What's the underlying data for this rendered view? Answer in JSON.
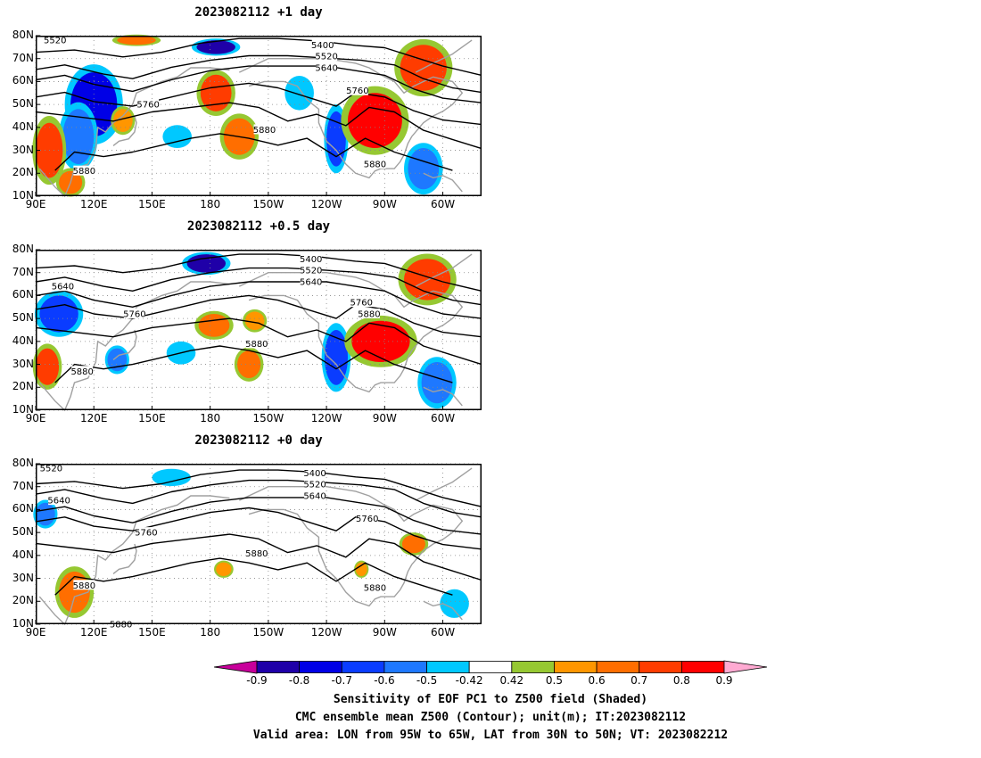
{
  "panels": [
    {
      "title": "2023082112  +1 day",
      "contour_labels": [
        {
          "text": "5520",
          "lon": 100,
          "lat": 78
        },
        {
          "text": "5400",
          "lon": 238,
          "lat": 76
        },
        {
          "text": "5520",
          "lon": 240,
          "lat": 71
        },
        {
          "text": "5640",
          "lon": 240,
          "lat": 66
        },
        {
          "text": "5760",
          "lon": 148,
          "lat": 50
        },
        {
          "text": "5760",
          "lon": 256,
          "lat": 56
        },
        {
          "text": "5880",
          "lon": 115,
          "lat": 21
        },
        {
          "text": "5880",
          "lon": 208,
          "lat": 39
        },
        {
          "text": "5880",
          "lon": 265,
          "lat": 24
        }
      ],
      "shading": [
        {
          "level": -0.8,
          "lon": 120,
          "lat": 50,
          "rx": 12,
          "ry": 14
        },
        {
          "level": -0.6,
          "lon": 112,
          "lat": 36,
          "rx": 8,
          "ry": 12
        },
        {
          "level": -0.9,
          "lon": 183,
          "lat": 75,
          "rx": 10,
          "ry": 3
        },
        {
          "level": -0.7,
          "lon": 245,
          "lat": 35,
          "rx": 5,
          "ry": 12
        },
        {
          "level": -0.5,
          "lon": 226,
          "lat": 55,
          "rx": 6,
          "ry": 6
        },
        {
          "level": -0.6,
          "lon": 290,
          "lat": 22,
          "rx": 8,
          "ry": 9
        },
        {
          "level": -0.5,
          "lon": 163,
          "lat": 36,
          "rx": 6,
          "ry": 4
        },
        {
          "level": 0.7,
          "lon": 183,
          "lat": 55,
          "rx": 8,
          "ry": 8
        },
        {
          "level": 0.6,
          "lon": 195,
          "lat": 36,
          "rx": 8,
          "ry": 8
        },
        {
          "level": 0.8,
          "lon": 265,
          "lat": 43,
          "rx": 14,
          "ry": 12
        },
        {
          "level": 0.7,
          "lon": 290,
          "lat": 66,
          "rx": 12,
          "ry": 10
        },
        {
          "level": 0.7,
          "lon": 97,
          "lat": 30,
          "rx": 7,
          "ry": 12
        },
        {
          "level": 0.6,
          "lon": 108,
          "lat": 16,
          "rx": 6,
          "ry": 5
        },
        {
          "level": 0.5,
          "lon": 135,
          "lat": 43,
          "rx": 5,
          "ry": 5
        },
        {
          "level": 0.6,
          "lon": 142,
          "lat": 78,
          "rx": 10,
          "ry": 2
        }
      ]
    },
    {
      "title": "2023082112  +0.5 day",
      "contour_labels": [
        {
          "text": "5400",
          "lon": 232,
          "lat": 76
        },
        {
          "text": "5520",
          "lon": 232,
          "lat": 71
        },
        {
          "text": "5640",
          "lon": 232,
          "lat": 66
        },
        {
          "text": "5640",
          "lon": 104,
          "lat": 64
        },
        {
          "text": "5760",
          "lon": 141,
          "lat": 52
        },
        {
          "text": "5760",
          "lon": 258,
          "lat": 57
        },
        {
          "text": "5880",
          "lon": 114,
          "lat": 27
        },
        {
          "text": "5880",
          "lon": 204,
          "lat": 39
        },
        {
          "text": "5880",
          "lon": 262,
          "lat": 52
        }
      ],
      "shading": [
        {
          "level": -0.7,
          "lon": 102,
          "lat": 52,
          "rx": 10,
          "ry": 8
        },
        {
          "level": -0.9,
          "lon": 178,
          "lat": 74,
          "rx": 10,
          "ry": 4
        },
        {
          "level": -0.7,
          "lon": 245,
          "lat": 33,
          "rx": 6,
          "ry": 12
        },
        {
          "level": -0.6,
          "lon": 297,
          "lat": 22,
          "rx": 8,
          "ry": 9
        },
        {
          "level": -0.5,
          "lon": 165,
          "lat": 35,
          "rx": 6,
          "ry": 4
        },
        {
          "level": -0.6,
          "lon": 132,
          "lat": 32,
          "rx": 5,
          "ry": 5
        },
        {
          "level": 0.6,
          "lon": 182,
          "lat": 47,
          "rx": 8,
          "ry": 5
        },
        {
          "level": 0.8,
          "lon": 268,
          "lat": 40,
          "rx": 15,
          "ry": 9
        },
        {
          "level": 0.7,
          "lon": 292,
          "lat": 67,
          "rx": 12,
          "ry": 9
        },
        {
          "level": 0.7,
          "lon": 96,
          "lat": 29,
          "rx": 6,
          "ry": 8
        },
        {
          "level": 0.6,
          "lon": 200,
          "lat": 30,
          "rx": 6,
          "ry": 6
        },
        {
          "level": 0.5,
          "lon": 203,
          "lat": 49,
          "rx": 5,
          "ry": 4
        }
      ]
    },
    {
      "title": "2023082112  +0 day",
      "contour_labels": [
        {
          "text": "5520",
          "lon": 98,
          "lat": 78
        },
        {
          "text": "5400",
          "lon": 234,
          "lat": 76
        },
        {
          "text": "5520",
          "lon": 234,
          "lat": 71
        },
        {
          "text": "5640",
          "lon": 234,
          "lat": 66
        },
        {
          "text": "5640",
          "lon": 102,
          "lat": 64
        },
        {
          "text": "5760",
          "lon": 147,
          "lat": 50
        },
        {
          "text": "5760",
          "lon": 261,
          "lat": 56
        },
        {
          "text": "5880",
          "lon": 115,
          "lat": 27
        },
        {
          "text": "5880",
          "lon": 204,
          "lat": 41
        },
        {
          "text": "5880",
          "lon": 265,
          "lat": 26
        },
        {
          "text": "5880",
          "lon": 134,
          "lat": 10
        }
      ],
      "shading": [
        {
          "level": -0.6,
          "lon": 95,
          "lat": 58,
          "rx": 5,
          "ry": 5
        },
        {
          "level": -0.5,
          "lon": 160,
          "lat": 74,
          "rx": 8,
          "ry": 3
        },
        {
          "level": -0.5,
          "lon": 306,
          "lat": 19,
          "rx": 6,
          "ry": 5
        },
        {
          "level": 0.6,
          "lon": 110,
          "lat": 24,
          "rx": 8,
          "ry": 9
        },
        {
          "level": 0.5,
          "lon": 187,
          "lat": 34,
          "rx": 4,
          "ry": 3
        },
        {
          "level": 0.6,
          "lon": 285,
          "lat": 45,
          "rx": 6,
          "ry": 4
        },
        {
          "level": 0.5,
          "lon": 258,
          "lat": 34,
          "rx": 3,
          "ry": 3
        }
      ]
    }
  ],
  "axes": {
    "lat_labels": [
      "80N",
      "70N",
      "60N",
      "50N",
      "40N",
      "30N",
      "20N",
      "10N"
    ],
    "lat_values": [
      80,
      70,
      60,
      50,
      40,
      30,
      20,
      10
    ],
    "lon_labels": [
      "90E",
      "120E",
      "150E",
      "180",
      "150W",
      "120W",
      "90W",
      "60W"
    ],
    "lon_values": [
      90,
      120,
      150,
      180,
      210,
      240,
      270,
      300
    ],
    "lon_range": [
      90,
      320
    ],
    "lat_range": [
      10,
      80
    ]
  },
  "colorbar": {
    "labels": [
      "-0.9",
      "-0.8",
      "-0.7",
      "-0.6",
      "-0.5",
      "-0.42",
      "0.42",
      "0.5",
      "0.6",
      "0.7",
      "0.8",
      "0.9"
    ],
    "levels": [
      -0.9,
      -0.8,
      -0.7,
      -0.6,
      -0.5,
      -0.42,
      0.42,
      0.5,
      0.6,
      0.7,
      0.8,
      0.9
    ],
    "colors": [
      "#1f00a8",
      "#0000e6",
      "#0a3cff",
      "#1e78ff",
      "#00c8ff",
      "#ffffff",
      "#96c832",
      "#ff9600",
      "#ff6e00",
      "#ff3c00",
      "#ff0000"
    ],
    "low_color": "#c8009b",
    "high_color": "#ffaad2"
  },
  "caption": {
    "line1": "Sensitivity of EOF PC1 to Z500 field (Shaded)",
    "line2": "CMC ensemble mean Z500 (Contour); unit(m); IT:2023082112",
    "line3": "Valid area: LON from 95W to 65W, LAT from 30N to 50N; VT: 2023082212"
  }
}
